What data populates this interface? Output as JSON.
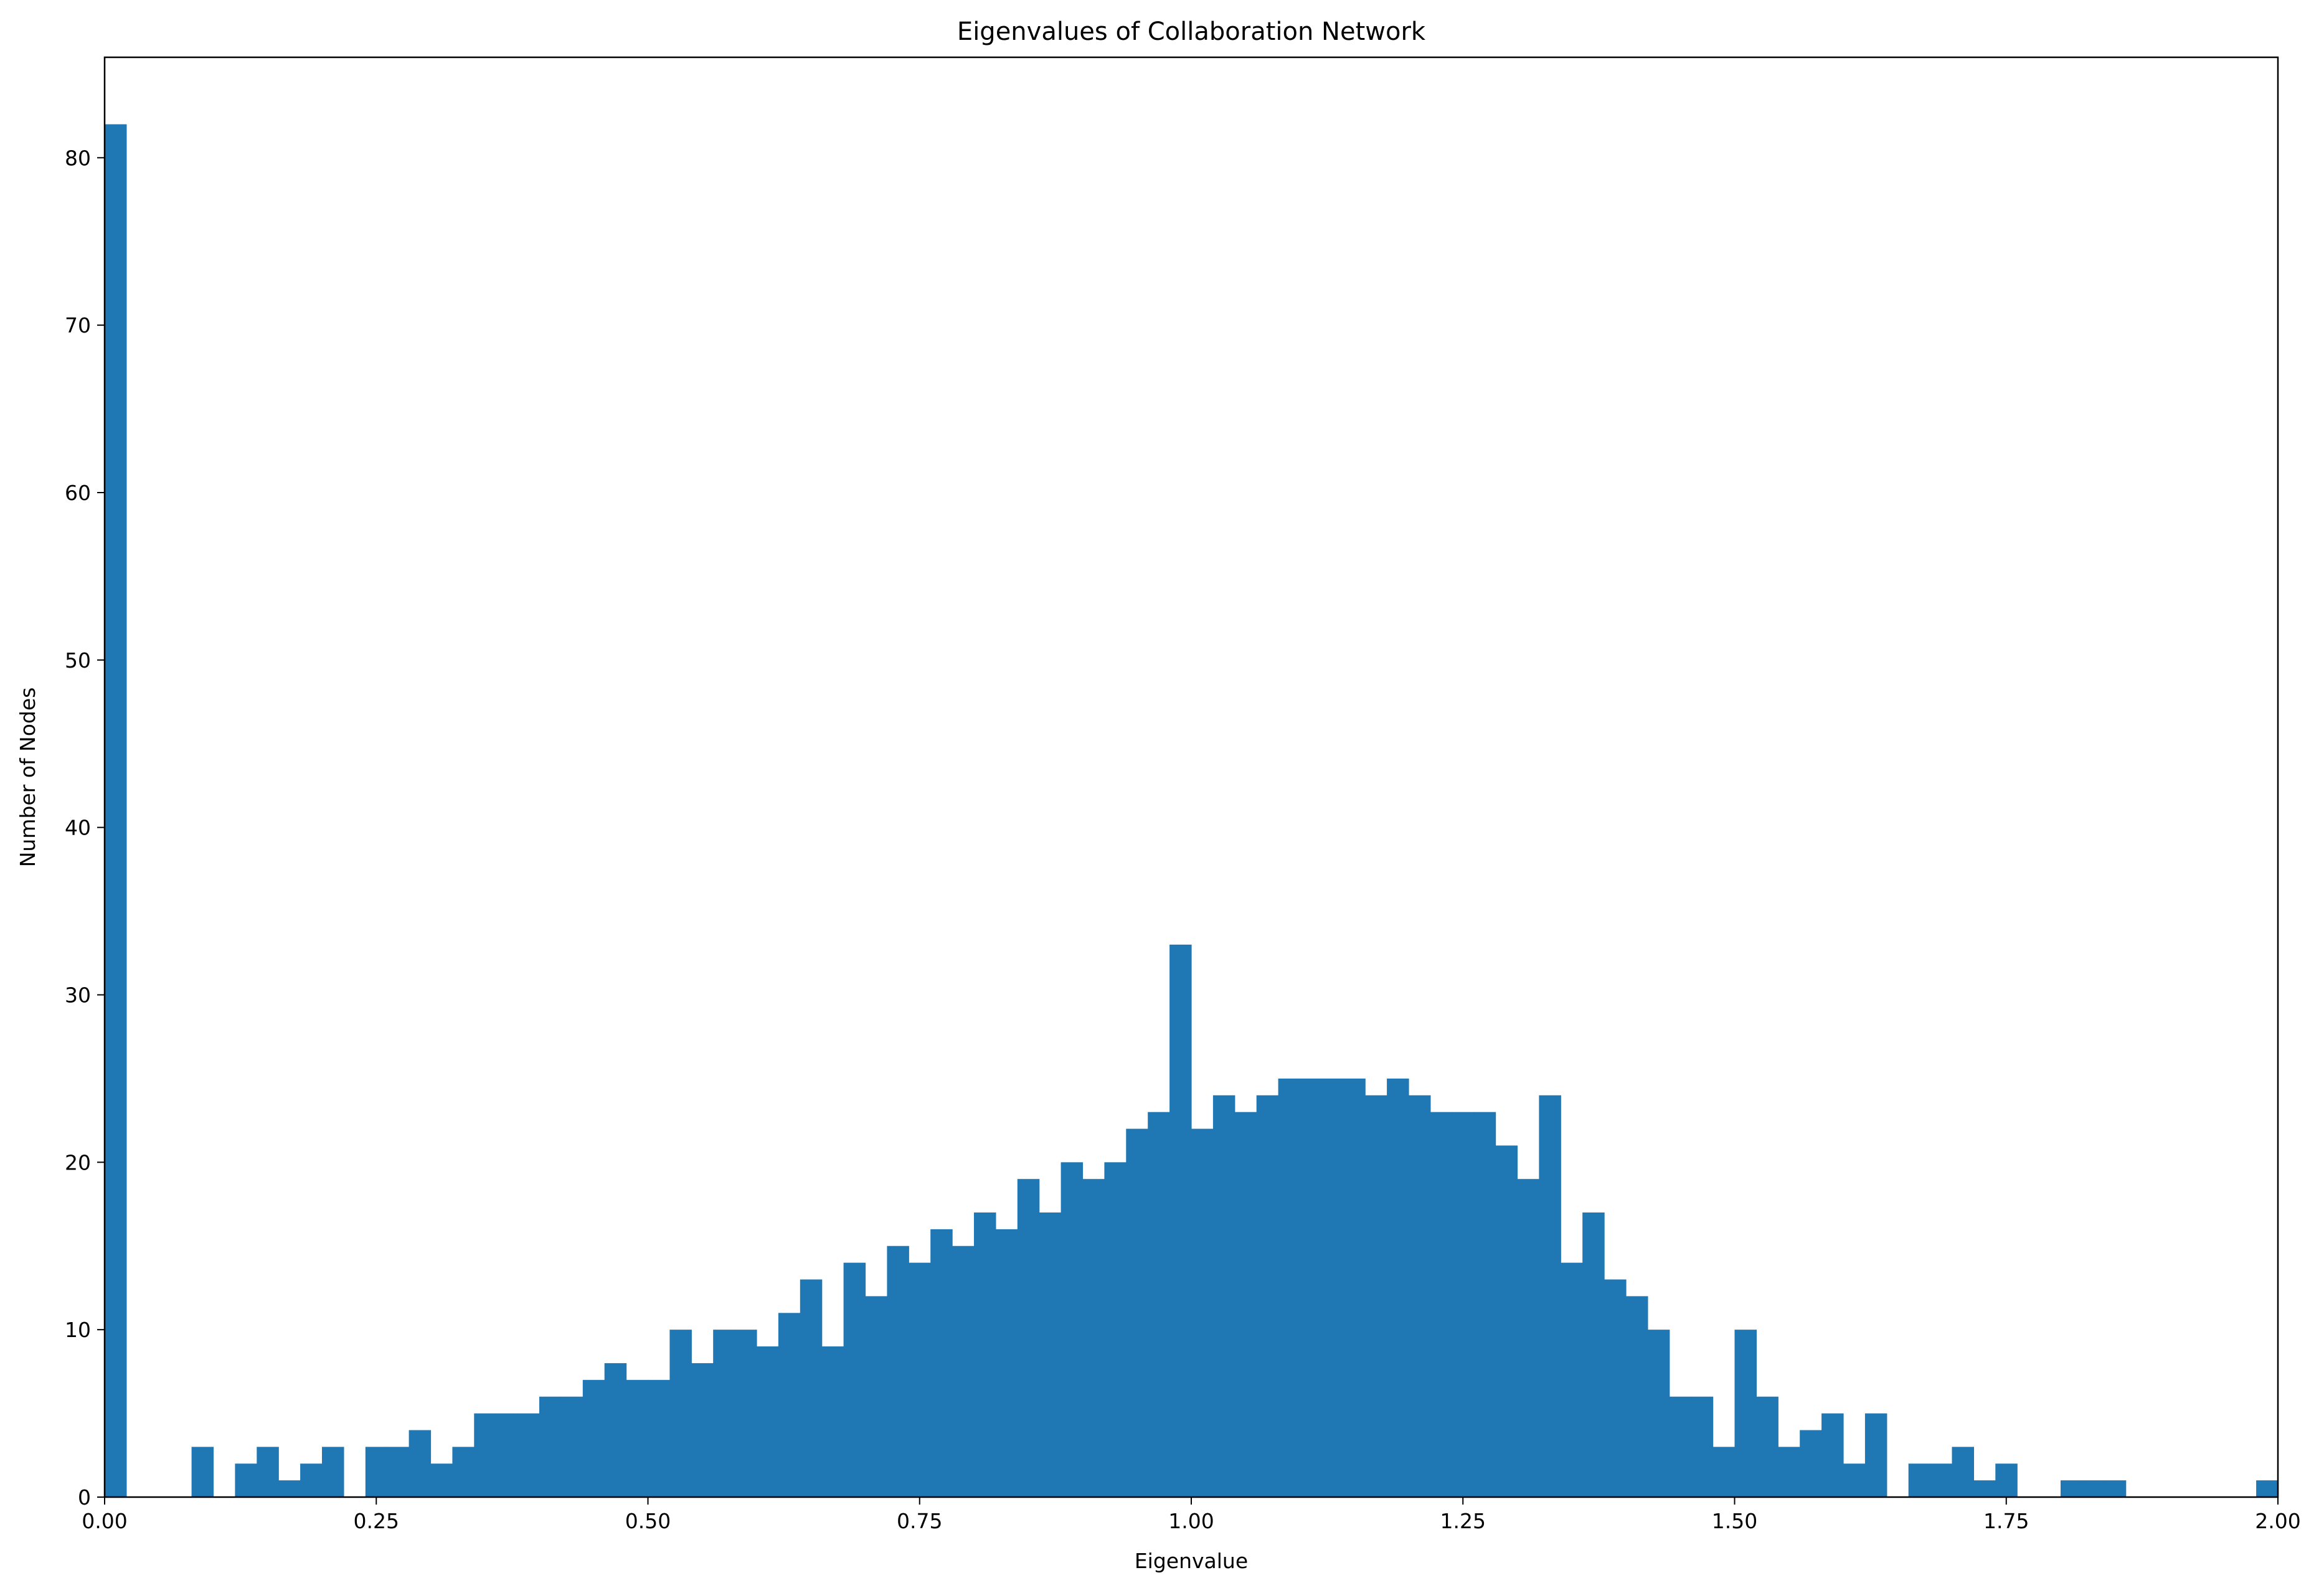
{
  "chart_data": {
    "type": "bar",
    "title": "Eigenvalues of Collaboration Network",
    "xlabel": "Eigenvalue",
    "ylabel": "Number of Nodes",
    "xlim": [
      0,
      2
    ],
    "ylim": [
      0,
      86
    ],
    "x_ticks": [
      "0.00",
      "0.25",
      "0.50",
      "0.75",
      "1.00",
      "1.25",
      "1.50",
      "1.75",
      "2.00"
    ],
    "y_ticks": [
      "0",
      "10",
      "20",
      "30",
      "40",
      "50",
      "60",
      "70",
      "80"
    ],
    "bar_color": "#1f77b4",
    "grid": false,
    "bin_width": 0.02,
    "bin_starts": [
      0.0,
      0.02,
      0.04,
      0.06,
      0.08,
      0.1,
      0.12,
      0.14,
      0.16,
      0.18,
      0.2,
      0.22,
      0.24,
      0.26,
      0.28,
      0.3,
      0.32,
      0.34,
      0.36,
      0.38,
      0.4,
      0.42,
      0.44,
      0.46,
      0.48,
      0.5,
      0.52,
      0.54,
      0.56,
      0.58,
      0.6,
      0.62,
      0.64,
      0.66,
      0.68,
      0.7,
      0.72,
      0.74,
      0.76,
      0.78,
      0.8,
      0.82,
      0.84,
      0.86,
      0.88,
      0.9,
      0.92,
      0.94,
      0.96,
      0.98,
      1.0,
      1.02,
      1.04,
      1.06,
      1.08,
      1.1,
      1.12,
      1.14,
      1.16,
      1.18,
      1.2,
      1.22,
      1.24,
      1.26,
      1.28,
      1.3,
      1.32,
      1.34,
      1.36,
      1.38,
      1.4,
      1.42,
      1.44,
      1.46,
      1.48,
      1.5,
      1.52,
      1.54,
      1.56,
      1.58,
      1.6,
      1.62,
      1.64,
      1.66,
      1.68,
      1.7,
      1.72,
      1.74,
      1.76,
      1.78,
      1.8,
      1.82,
      1.84,
      1.86,
      1.88,
      1.9,
      1.92,
      1.94,
      1.96,
      1.98
    ],
    "values": [
      82,
      0,
      0,
      0,
      3,
      0,
      2,
      3,
      1,
      2,
      3,
      0,
      3,
      3,
      4,
      2,
      3,
      5,
      5,
      5,
      6,
      6,
      7,
      8,
      7,
      7,
      10,
      8,
      10,
      10,
      9,
      11,
      13,
      9,
      14,
      12,
      15,
      14,
      16,
      15,
      17,
      16,
      19,
      17,
      20,
      19,
      20,
      22,
      23,
      33,
      22,
      24,
      23,
      24,
      25,
      25,
      25,
      25,
      24,
      25,
      24,
      23,
      23,
      23,
      21,
      19,
      24,
      14,
      17,
      13,
      12,
      10,
      6,
      6,
      3,
      10,
      6,
      3,
      4,
      5,
      2,
      5,
      0,
      2,
      2,
      3,
      1,
      2,
      0,
      0,
      1,
      1,
      1,
      0,
      0,
      0,
      0,
      0,
      0,
      1
    ]
  }
}
